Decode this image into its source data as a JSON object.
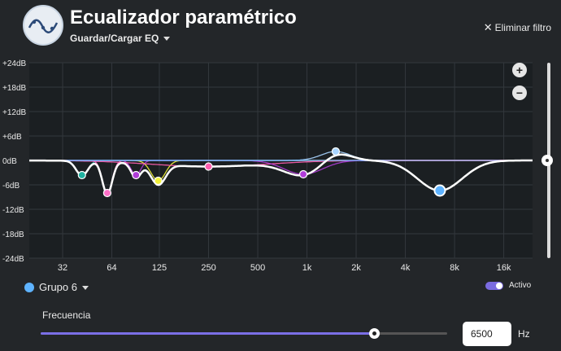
{
  "app": {
    "title": "Ecualizador paramétrico",
    "logo_icon": "wave-eq-icon"
  },
  "header": {
    "preset_label": "Guardar/Cargar EQ",
    "remove_filter_label": "Eliminar filtro",
    "remove_icon": "close-icon"
  },
  "colors": {
    "background": "#232629",
    "plot_background": "#1b1f22",
    "curve": "#ffffff",
    "accent": "#7a6be0",
    "selected_band": "#5eb3ff"
  },
  "chart_data": {
    "type": "line",
    "title": "Ecualizador paramétrico",
    "xscale": "log",
    "xlim": [
      20,
      24000
    ],
    "ylim": [
      -24,
      24
    ],
    "y_ticks": [
      "+24dB",
      "+18dB",
      "+12dB",
      "+6dB",
      "0dB",
      "-6dB",
      "-12dB",
      "-18dB",
      "-24dB"
    ],
    "y_tick_values": [
      24,
      18,
      12,
      6,
      0,
      -6,
      -12,
      -18,
      -24
    ],
    "x_ticks": [
      "32",
      "64",
      "125",
      "250",
      "500",
      "1k",
      "2k",
      "4k",
      "8k",
      "16k"
    ],
    "x_tick_values": [
      32,
      64,
      125,
      250,
      500,
      1000,
      2000,
      4000,
      8000,
      16000
    ],
    "series": [
      {
        "name": "band-1",
        "color": "#20b2a0",
        "freq": 42,
        "gain": -3.6,
        "q": 5
      },
      {
        "name": "band-2",
        "color": "#ff6fc8",
        "freq": 60,
        "gain": -8,
        "q": 6
      },
      {
        "name": "band-3",
        "color": "#b03cd8",
        "freq": 90,
        "gain": -3.6,
        "q": 6
      },
      {
        "name": "band-4",
        "color": "#f2f23a",
        "freq": 123,
        "gain": -5,
        "q": 4
      },
      {
        "name": "band-5",
        "color": "#ff5fb0",
        "freq": 250,
        "gain": -1.5,
        "q": 0.5
      },
      {
        "name": "band-6",
        "color": "#b03cd8",
        "freq": 950,
        "gain": -3.4,
        "q": 1.5
      },
      {
        "name": "band-7",
        "color": "#a8d4ff",
        "freq": 1500,
        "gain": 2.2,
        "q": 2
      },
      {
        "name": "Grupo 6",
        "color": "#5eb3ff",
        "freq": 6500,
        "gain": -7.4,
        "q": 1.3
      }
    ]
  },
  "controls": {
    "zoom_in": "+",
    "zoom_out": "−",
    "group_label": "Grupo 6",
    "active_label": "Activo",
    "active": true,
    "frequency_label": "Frecuencia",
    "frequency_value": "6500",
    "frequency_unit": "Hz",
    "frequency_slider_fraction": 0.82,
    "gain_slider_fraction": 0.5
  }
}
